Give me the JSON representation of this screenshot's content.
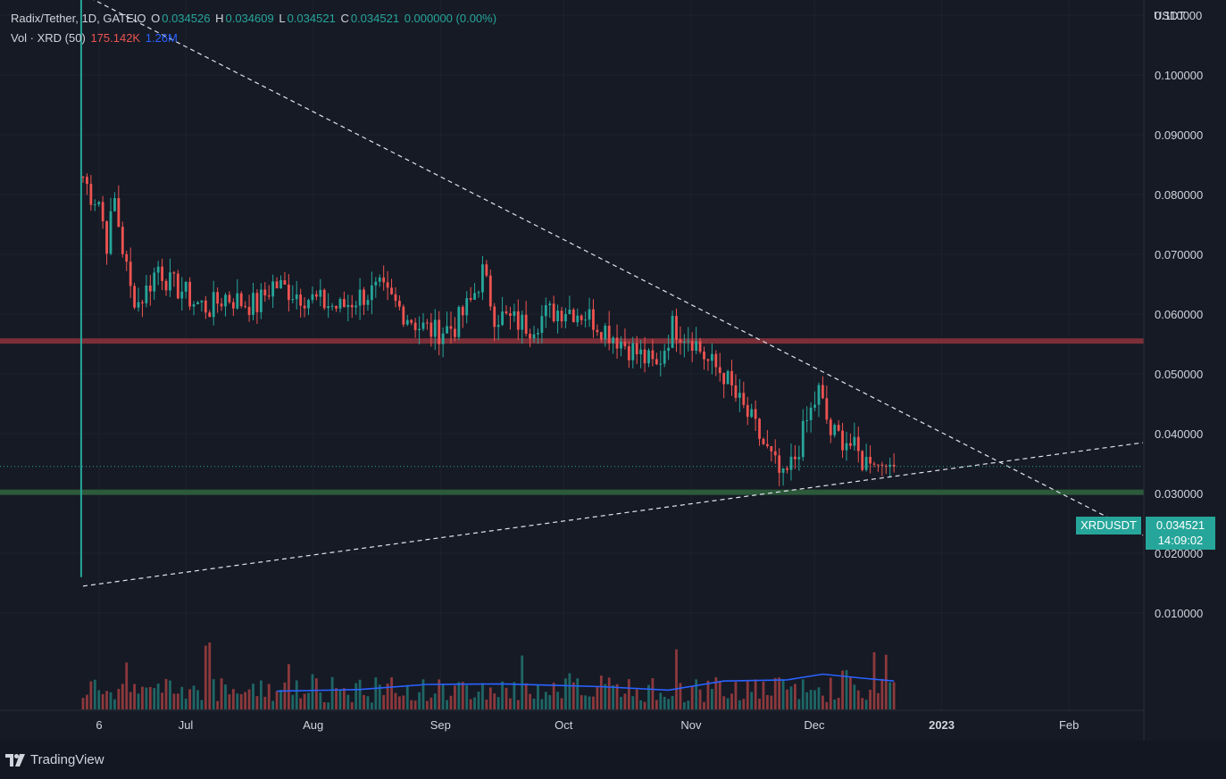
{
  "legend": {
    "title": "Radix/Tether, 1D, GATEIO",
    "o_label": "O",
    "o_value": "0.034526",
    "h_label": "H",
    "h_value": "0.034609",
    "l_label": "L",
    "l_value": "0.034521",
    "c_label": "C",
    "c_value": "0.034521",
    "change": "0.000000 (0.00%)",
    "vol_title": "Vol · XRD (50)",
    "vol_value": "175.142K",
    "vol_ma": "1.26M"
  },
  "price_axis": {
    "unit": "USDT",
    "ticks": [
      "0.110000",
      "0.100000",
      "0.090000",
      "0.080000",
      "0.070000",
      "0.060000",
      "0.050000",
      "0.040000",
      "0.030000",
      "0.020000",
      "0.010000"
    ]
  },
  "last_price": {
    "symbol": "XRDUSDT",
    "price": "0.034521",
    "countdown": "14:09:02"
  },
  "footer": {
    "brand": "TradingView",
    "brand_icon": "tradingview-logo-icon"
  },
  "colors": {
    "background": "#161a25",
    "up": "#26a69a",
    "down": "#ef5350",
    "volume_ma": "#2962ff",
    "resistance": "#7b2f38",
    "support": "#2c5a3b"
  },
  "chart_data": {
    "type": "candlestick",
    "symbol": "XRDUSDT",
    "interval": "1D",
    "exchange": "GATEIO",
    "ylim": [
      0.0,
      0.116
    ],
    "x_ticks": [
      "6",
      "Jul",
      "Aug",
      "Sep",
      "Oct",
      "Nov",
      "Dec",
      "2023",
      "Feb"
    ],
    "x_tick_dates": [
      "2022-06-06",
      "2022-07-01",
      "2022-08-01",
      "2022-09-01",
      "2022-10-01",
      "2022-11-01",
      "2022-12-01",
      "2023-01-01",
      "2023-02-01"
    ],
    "x_range": [
      "2022-06-05",
      "2023-02-19"
    ],
    "horizontal_lines": [
      {
        "role": "resistance",
        "y": 0.0555,
        "color": "#7b2f38"
      },
      {
        "role": "support",
        "y": 0.0302,
        "color": "#2c5a3b"
      }
    ],
    "trend_lines": [
      {
        "role": "descending",
        "from": [
          "2022-06-06",
          0.1135
        ],
        "to": [
          "2023-02-19",
          0.023
        ]
      },
      {
        "role": "ascending",
        "from": [
          "2022-06-06",
          0.0145
        ],
        "to": [
          "2023-02-19",
          0.0385
        ]
      }
    ],
    "price_close_series": [
      [
        "2022-06-05",
        0.016
      ],
      [
        "2022-06-06",
        0.083
      ],
      [
        "2022-06-08",
        0.08
      ],
      [
        "2022-06-10",
        0.079
      ],
      [
        "2022-06-12",
        0.072
      ],
      [
        "2022-06-14",
        0.079
      ],
      [
        "2022-06-16",
        0.071
      ],
      [
        "2022-06-18",
        0.064
      ],
      [
        "2022-06-20",
        0.062
      ],
      [
        "2022-06-22",
        0.064
      ],
      [
        "2022-06-25",
        0.068
      ],
      [
        "2022-06-28",
        0.065
      ],
      [
        "2022-07-01",
        0.064
      ],
      [
        "2022-07-04",
        0.062
      ],
      [
        "2022-07-08",
        0.061
      ],
      [
        "2022-07-12",
        0.063
      ],
      [
        "2022-07-16",
        0.062
      ],
      [
        "2022-07-20",
        0.0615
      ],
      [
        "2022-07-24",
        0.065
      ],
      [
        "2022-07-28",
        0.064
      ],
      [
        "2022-08-01",
        0.063
      ],
      [
        "2022-08-05",
        0.062
      ],
      [
        "2022-08-10",
        0.061
      ],
      [
        "2022-08-15",
        0.063
      ],
      [
        "2022-08-20",
        0.064
      ],
      [
        "2022-08-25",
        0.061
      ],
      [
        "2022-08-30",
        0.058
      ],
      [
        "2022-09-03",
        0.057
      ],
      [
        "2022-09-08",
        0.058
      ],
      [
        "2022-09-12",
        0.062
      ],
      [
        "2022-09-15",
        0.067
      ],
      [
        "2022-09-18",
        0.06
      ],
      [
        "2022-09-22",
        0.059
      ],
      [
        "2022-09-27",
        0.058
      ],
      [
        "2022-10-01",
        0.06
      ],
      [
        "2022-10-06",
        0.061
      ],
      [
        "2022-10-11",
        0.06
      ],
      [
        "2022-10-16",
        0.0575
      ],
      [
        "2022-10-21",
        0.055
      ],
      [
        "2022-10-25",
        0.053
      ],
      [
        "2022-10-29",
        0.051
      ],
      [
        "2022-11-02",
        0.058
      ],
      [
        "2022-11-07",
        0.056
      ],
      [
        "2022-11-11",
        0.052
      ],
      [
        "2022-11-15",
        0.05
      ],
      [
        "2022-11-18",
        0.046
      ],
      [
        "2022-11-22",
        0.042
      ],
      [
        "2022-11-26",
        0.037
      ],
      [
        "2022-11-30",
        0.032
      ],
      [
        "2022-12-03",
        0.036
      ],
      [
        "2022-12-06",
        0.042
      ],
      [
        "2022-12-09",
        0.047
      ],
      [
        "2022-12-12",
        0.04
      ],
      [
        "2022-12-16",
        0.039
      ],
      [
        "2022-12-20",
        0.0355
      ],
      [
        "2022-12-24",
        0.0348
      ],
      [
        "2022-12-28",
        0.03452
      ]
    ],
    "volume_ma_series": [
      [
        "2022-07-25",
        0.0032
      ],
      [
        "2022-08-15",
        0.0035
      ],
      [
        "2022-09-01",
        0.0044
      ],
      [
        "2022-09-20",
        0.0045
      ],
      [
        "2022-10-15",
        0.004
      ],
      [
        "2022-11-01",
        0.0034
      ],
      [
        "2022-11-15",
        0.005
      ],
      [
        "2022-12-01",
        0.0052
      ],
      [
        "2022-12-10",
        0.0062
      ],
      [
        "2022-12-20",
        0.0055
      ],
      [
        "2022-12-28",
        0.005
      ]
    ]
  }
}
